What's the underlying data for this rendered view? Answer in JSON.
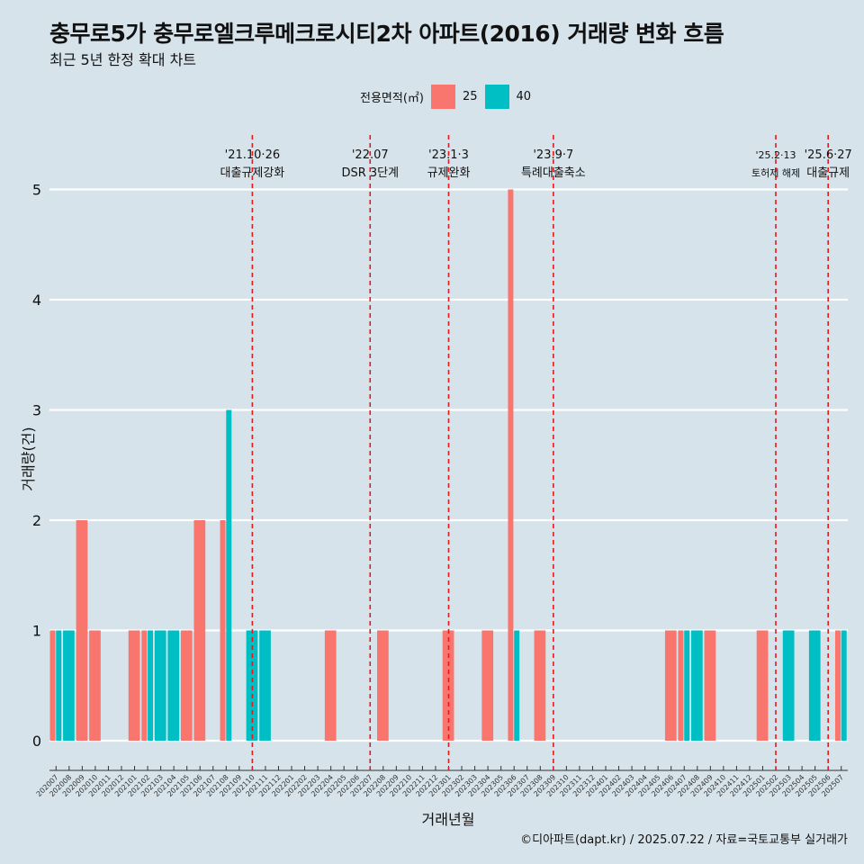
{
  "title": "충무로5가 충무로엘크루메크로시티2차 아파트(2016) 거래량 변화 흐름",
  "subtitle": "최근 5년 한정 확대 차트",
  "caption": "©디아파트(dapt.kr) / 2025.07.22 / 자료=국토교통부 실거래가",
  "legend": {
    "title": "전용면적(㎡)",
    "items": [
      {
        "label": "25",
        "color": "#f8766d"
      },
      {
        "label": "40",
        "color": "#00bfc4"
      }
    ]
  },
  "chart_data": {
    "type": "bar",
    "xlabel": "거래년월",
    "ylabel": "거래량(건)",
    "ylim": [
      0,
      5
    ],
    "yticks": [
      0,
      1,
      2,
      3,
      4,
      5
    ],
    "grid": true,
    "legend_position": "top",
    "categories": [
      "202007",
      "202008",
      "202009",
      "202010",
      "202011",
      "202012",
      "202101",
      "202102",
      "202103",
      "202104",
      "202105",
      "202106",
      "202107",
      "202108",
      "202109",
      "202110",
      "202111",
      "202112",
      "202201",
      "202202",
      "202203",
      "202204",
      "202205",
      "202206",
      "202207",
      "202208",
      "202209",
      "202210",
      "202211",
      "202212",
      "202301",
      "202302",
      "202303",
      "202304",
      "202305",
      "202306",
      "202307",
      "202308",
      "202309",
      "202310",
      "202311",
      "202312",
      "202401",
      "202402",
      "202403",
      "202404",
      "202405",
      "202406",
      "202407",
      "202408",
      "202409",
      "202410",
      "202411",
      "202412",
      "202501",
      "202502",
      "202503",
      "202504",
      "202505",
      "202506",
      "202507"
    ],
    "series": [
      {
        "name": "25",
        "color": "#f8766d",
        "values": [
          1,
          0,
          2,
          1,
          0,
          0,
          1,
          1,
          0,
          0,
          1,
          2,
          0,
          2,
          0,
          0,
          0,
          0,
          0,
          0,
          0,
          1,
          0,
          0,
          0,
          1,
          0,
          0,
          0,
          0,
          1,
          0,
          0,
          1,
          0,
          5,
          0,
          1,
          0,
          0,
          0,
          0,
          0,
          0,
          0,
          0,
          0,
          1,
          1,
          0,
          1,
          0,
          0,
          0,
          1,
          0,
          0,
          0,
          0,
          0,
          1
        ]
      },
      {
        "name": "40",
        "color": "#00bfc4",
        "values": [
          1,
          1,
          0,
          0,
          0,
          0,
          0,
          1,
          1,
          1,
          0,
          0,
          0,
          3,
          0,
          1,
          1,
          0,
          0,
          0,
          0,
          0,
          0,
          0,
          0,
          0,
          0,
          0,
          0,
          0,
          0,
          0,
          0,
          0,
          0,
          1,
          0,
          0,
          0,
          0,
          0,
          0,
          0,
          0,
          0,
          0,
          0,
          0,
          1,
          1,
          0,
          0,
          0,
          0,
          0,
          0,
          1,
          0,
          1,
          0,
          1
        ]
      }
    ],
    "annotations": [
      {
        "date": "'21.10·26",
        "label": "대출규제강화",
        "at": "202110"
      },
      {
        "date": "'22.07",
        "label": "DSR 3단계",
        "at": "202207"
      },
      {
        "date": "'23.1·3",
        "label": "규제완화",
        "at": "202301"
      },
      {
        "date": "'23.9·7",
        "label": "특례대출축소",
        "at": "202309"
      },
      {
        "date": "'25.2·13",
        "label": "토허제 해제",
        "at": "202502"
      },
      {
        "date": "'25.6·27",
        "label": "대출규제",
        "at": "202506"
      }
    ]
  }
}
